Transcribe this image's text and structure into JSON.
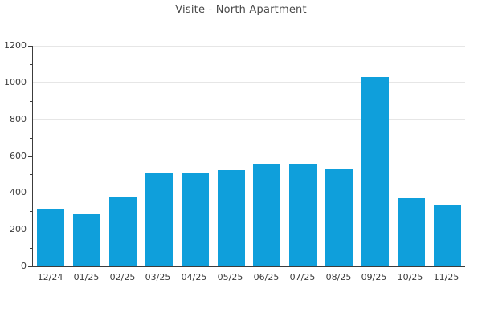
{
  "chart_data": {
    "type": "bar",
    "title": "Visite - North Apartment",
    "categories": [
      "12/24",
      "01/25",
      "02/25",
      "03/25",
      "04/25",
      "05/25",
      "06/25",
      "07/25",
      "08/25",
      "09/25",
      "10/25",
      "11/25"
    ],
    "values": [
      310,
      285,
      375,
      510,
      510,
      525,
      560,
      560,
      530,
      1030,
      370,
      335
    ],
    "xlabel": "",
    "ylabel": "",
    "ylim": [
      0,
      1200
    ],
    "ytick_major": 200,
    "ytick_minor": 100,
    "ytick_labels": [
      "0",
      "200",
      "400",
      "600",
      "800",
      "1000",
      "1200"
    ],
    "grid": "horizontal-major",
    "legend_position": "none",
    "colors": {
      "bar": "#0f9fdb",
      "grid": "#e6e6e6",
      "axis": "#3c3c3c",
      "tick_text": "#3c3c3c",
      "title_text": "#4a4a4a",
      "background": "#ffffff"
    }
  }
}
